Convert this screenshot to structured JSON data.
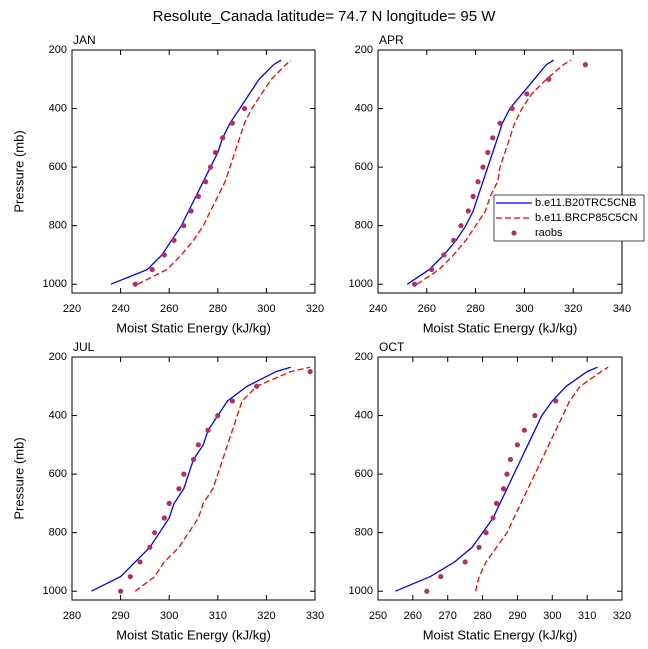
{
  "title": "Resolute_Canada  latitude= 74.7 N longitude= 95 W",
  "chart_data": [
    {
      "type": "line",
      "title": "JAN",
      "xlabel": "Moist Static Energy (kJ/kg)",
      "ylabel": "Pressure (mb)",
      "xlim": [
        220,
        320
      ],
      "xticks": [
        220,
        240,
        260,
        280,
        300,
        320
      ],
      "ylim": [
        1030,
        200
      ],
      "yticks": [
        200,
        400,
        600,
        800,
        1000
      ],
      "levels": [
        1000,
        950,
        900,
        850,
        800,
        750,
        700,
        650,
        600,
        550,
        500,
        450,
        400,
        350,
        300,
        250,
        235
      ],
      "series": [
        {
          "name": "b.e11.B20TRC5CNB",
          "color": "#0000ff",
          "style": "solid",
          "values": [
            236,
            251,
            257,
            261,
            265,
            268,
            271,
            274,
            277,
            280,
            282,
            285,
            289,
            293,
            297,
            303,
            306
          ]
        },
        {
          "name": "b.e11.BRCP85C5CN",
          "color": "#ff0000",
          "style": "dashed",
          "values": [
            247,
            259,
            265,
            270,
            274,
            277,
            280,
            283,
            285,
            287,
            289,
            291,
            294,
            298,
            302,
            308,
            310
          ]
        },
        {
          "name": "raobs",
          "color": "#b03060",
          "style": "markers",
          "values": [
            246,
            253,
            258,
            262,
            266,
            269,
            272,
            275,
            277,
            279,
            282,
            286,
            291,
            null,
            null,
            null,
            null
          ]
        }
      ]
    },
    {
      "type": "line",
      "title": "APR",
      "xlabel": "Moist Static Energy (kJ/kg)",
      "xlim": [
        240,
        340
      ],
      "xticks": [
        240,
        260,
        280,
        300,
        320,
        340
      ],
      "ylim": [
        1030,
        200
      ],
      "yticks": [
        200,
        400,
        600,
        800,
        1000
      ],
      "legend": "right",
      "levels": [
        1000,
        950,
        900,
        850,
        800,
        750,
        700,
        650,
        600,
        550,
        500,
        450,
        400,
        350,
        300,
        250,
        235
      ],
      "series": [
        {
          "name": "b.e11.B20TRC5CNB",
          "color": "#0000ff",
          "style": "solid",
          "values": [
            252,
            261,
            267,
            272,
            276,
            279,
            281,
            283,
            285,
            287,
            289,
            291,
            294,
            299,
            304,
            309,
            312
          ]
        },
        {
          "name": "b.e11.BRCP85C5CN",
          "color": "#ff0000",
          "style": "dashed",
          "values": [
            256,
            265,
            271,
            276,
            280,
            284,
            286,
            289,
            290,
            292,
            294,
            296,
            299,
            303,
            309,
            316,
            319
          ]
        },
        {
          "name": "raobs",
          "color": "#b03060",
          "style": "markers",
          "values": [
            255,
            262,
            267,
            271,
            274,
            277,
            279,
            281,
            283,
            285,
            287,
            290,
            295,
            301,
            310,
            325,
            null
          ]
        }
      ]
    },
    {
      "type": "line",
      "title": "JUL",
      "xlabel": "Moist Static Energy (kJ/kg)",
      "ylabel": "Pressure (mb)",
      "xlim": [
        280,
        330
      ],
      "xticks": [
        280,
        290,
        300,
        310,
        320,
        330
      ],
      "ylim": [
        1030,
        200
      ],
      "yticks": [
        200,
        400,
        600,
        800,
        1000
      ],
      "levels": [
        1000,
        950,
        900,
        850,
        800,
        750,
        700,
        650,
        600,
        550,
        500,
        450,
        400,
        350,
        300,
        250,
        235
      ],
      "series": [
        {
          "name": "b.e11.B20TRC5CNB",
          "color": "#0000ff",
          "style": "solid",
          "values": [
            284,
            290,
            293,
            296,
            298,
            300,
            301,
            303,
            304,
            305,
            307,
            308,
            310,
            312,
            316,
            322,
            325
          ]
        },
        {
          "name": "b.e11.BRCP85C5CN",
          "color": "#ff0000",
          "style": "dashed",
          "values": [
            293,
            297,
            299,
            302,
            304,
            306,
            307,
            309,
            310,
            311,
            312,
            313,
            314,
            315,
            318,
            325,
            329
          ]
        },
        {
          "name": "raobs",
          "color": "#b03060",
          "style": "markers",
          "values": [
            290,
            292,
            294,
            296,
            297,
            299,
            300,
            302,
            303,
            305,
            306,
            308,
            310,
            313,
            318,
            329,
            null
          ]
        }
      ]
    },
    {
      "type": "line",
      "title": "OCT",
      "xlabel": "Moist Static Energy (kJ/kg)",
      "xlim": [
        250,
        320
      ],
      "xticks": [
        250,
        260,
        270,
        280,
        290,
        300,
        310,
        320
      ],
      "ylim": [
        1030,
        200
      ],
      "yticks": [
        200,
        400,
        600,
        800,
        1000
      ],
      "levels": [
        1000,
        950,
        900,
        850,
        800,
        750,
        700,
        650,
        600,
        550,
        500,
        450,
        400,
        350,
        300,
        250,
        235
      ],
      "series": [
        {
          "name": "b.e11.B20TRC5CNB",
          "color": "#0000ff",
          "style": "solid",
          "values": [
            255,
            265,
            272,
            277,
            280,
            283,
            285,
            287,
            289,
            291,
            293,
            295,
            297,
            300,
            304,
            310,
            313
          ]
        },
        {
          "name": "b.e11.BRCP85C5CN",
          "color": "#ff0000",
          "style": "dashed",
          "values": [
            278,
            279,
            281,
            284,
            287,
            289,
            291,
            293,
            295,
            297,
            299,
            301,
            303,
            305,
            308,
            314,
            316
          ]
        },
        {
          "name": "raobs",
          "color": "#b03060",
          "style": "markers",
          "values": [
            264,
            268,
            275,
            279,
            281,
            283,
            284,
            286,
            287,
            288,
            290,
            292,
            295,
            301,
            null,
            null,
            null
          ]
        }
      ]
    }
  ]
}
